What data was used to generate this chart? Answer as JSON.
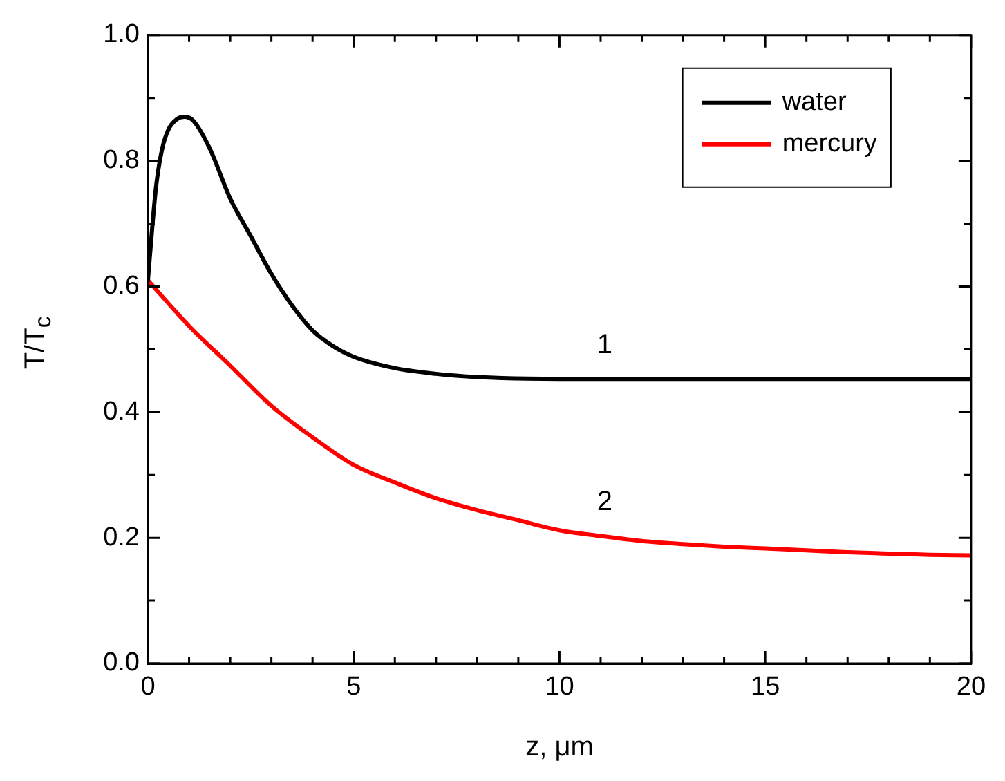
{
  "chart_data": {
    "type": "line",
    "xlabel": "z, μm",
    "ylabel": "T/T$_{c}$",
    "xlim": [
      0,
      20
    ],
    "ylim": [
      0,
      1
    ],
    "xticks": [
      0,
      {
        "value": 1,
        "label": null
      },
      {
        "value": 2,
        "label": null
      },
      {
        "value": 3,
        "label": null
      },
      {
        "value": 4,
        "label": null
      },
      5,
      {
        "value": 6,
        "label": null
      },
      {
        "value": 7,
        "label": null
      },
      {
        "value": 8,
        "label": null
      },
      {
        "value": 9,
        "label": null
      },
      10,
      {
        "value": 11,
        "label": null
      },
      {
        "value": 12,
        "label": null
      },
      {
        "value": 13,
        "label": null
      },
      {
        "value": 14,
        "label": null
      },
      15,
      {
        "value": 16,
        "label": null
      },
      {
        "value": 17,
        "label": null
      },
      {
        "value": 18,
        "label": null
      },
      {
        "value": 19,
        "label": null
      },
      20
    ],
    "yticks": [
      {
        "value": 0,
        "label": "0.0"
      },
      {
        "value": 0.1,
        "label": null
      },
      0.2,
      {
        "value": 0.3,
        "label": null
      },
      0.4,
      {
        "value": 0.5,
        "label": null
      },
      0.6,
      {
        "value": 0.7,
        "label": null
      },
      0.8,
      {
        "value": 0.9,
        "label": null
      },
      {
        "value": 1,
        "label": "1.0"
      }
    ],
    "series": [
      {
        "name": "water",
        "color": "#000000",
        "x": [
          0,
          0.1,
          0.2,
          0.35,
          0.5,
          0.7,
          0.88,
          1.1,
          1.5,
          2,
          2.5,
          3,
          3.5,
          4,
          4.5,
          5,
          6,
          7,
          8,
          10,
          20
        ],
        "values": [
          0.61,
          0.69,
          0.76,
          0.82,
          0.85,
          0.866,
          0.87,
          0.864,
          0.82,
          0.74,
          0.68,
          0.62,
          0.57,
          0.53,
          0.505,
          0.488,
          0.47,
          0.461,
          0.456,
          0.453,
          0.453
        ]
      },
      {
        "name": "mercury",
        "color": "#ff0000",
        "x": [
          0,
          1,
          2,
          3,
          4,
          5,
          6,
          7,
          8,
          9,
          10,
          11,
          12,
          13,
          14,
          15,
          16,
          17,
          18,
          19,
          20
        ],
        "values": [
          0.61,
          0.537,
          0.474,
          0.41,
          0.36,
          0.316,
          0.288,
          0.263,
          0.244,
          0.228,
          0.212,
          0.203,
          0.195,
          0.19,
          0.186,
          0.183,
          0.18,
          0.177,
          0.175,
          0.173,
          0.172
        ]
      }
    ],
    "annotations": [
      "1",
      "2"
    ],
    "legend": "top right",
    "grid": false,
    "marker": "none",
    "line_style": "solid"
  }
}
